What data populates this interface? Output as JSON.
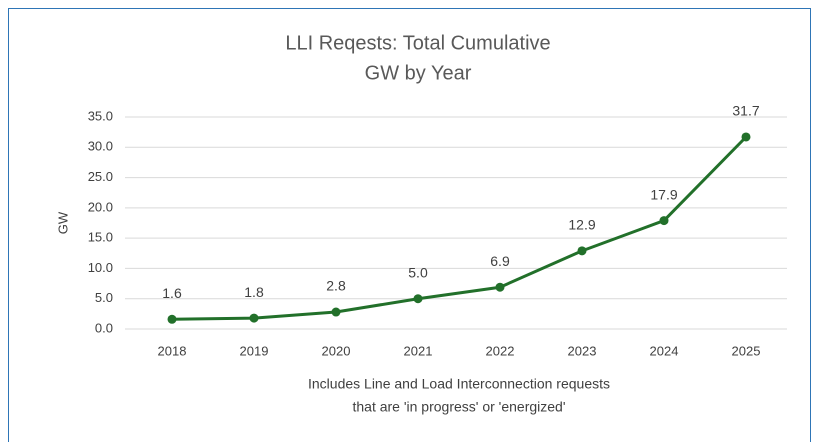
{
  "chart_data": {
    "type": "line",
    "title": [
      "LLI Reqests: Total Cumulative",
      "GW by Year"
    ],
    "ylabel": "GW",
    "xlabel": [
      "Includes Line and Load Interconnection requests",
      "that are 'in progress' or 'energized'"
    ],
    "categories": [
      "2018",
      "2019",
      "2020",
      "2021",
      "2022",
      "2023",
      "2024",
      "2025"
    ],
    "values": [
      1.6,
      1.8,
      2.8,
      5.0,
      6.9,
      12.9,
      17.9,
      31.7
    ],
    "value_labels": [
      "1.6",
      "1.8",
      "2.8",
      "5.0",
      "6.9",
      "12.9",
      "17.9",
      "31.7"
    ],
    "color": "#22702a",
    "ylim": [
      0,
      35
    ],
    "yticks": [
      {
        "value": 0,
        "label": "0.0"
      },
      {
        "value": 5,
        "label": "5.0"
      },
      {
        "value": 10,
        "label": "10.0"
      },
      {
        "value": 15,
        "label": "15.0"
      },
      {
        "value": 20,
        "label": "20.0"
      },
      {
        "value": 25,
        "label": "25.0"
      },
      {
        "value": 30,
        "label": "30.0"
      },
      {
        "value": 35,
        "label": "35.0"
      }
    ],
    "grid": true
  }
}
